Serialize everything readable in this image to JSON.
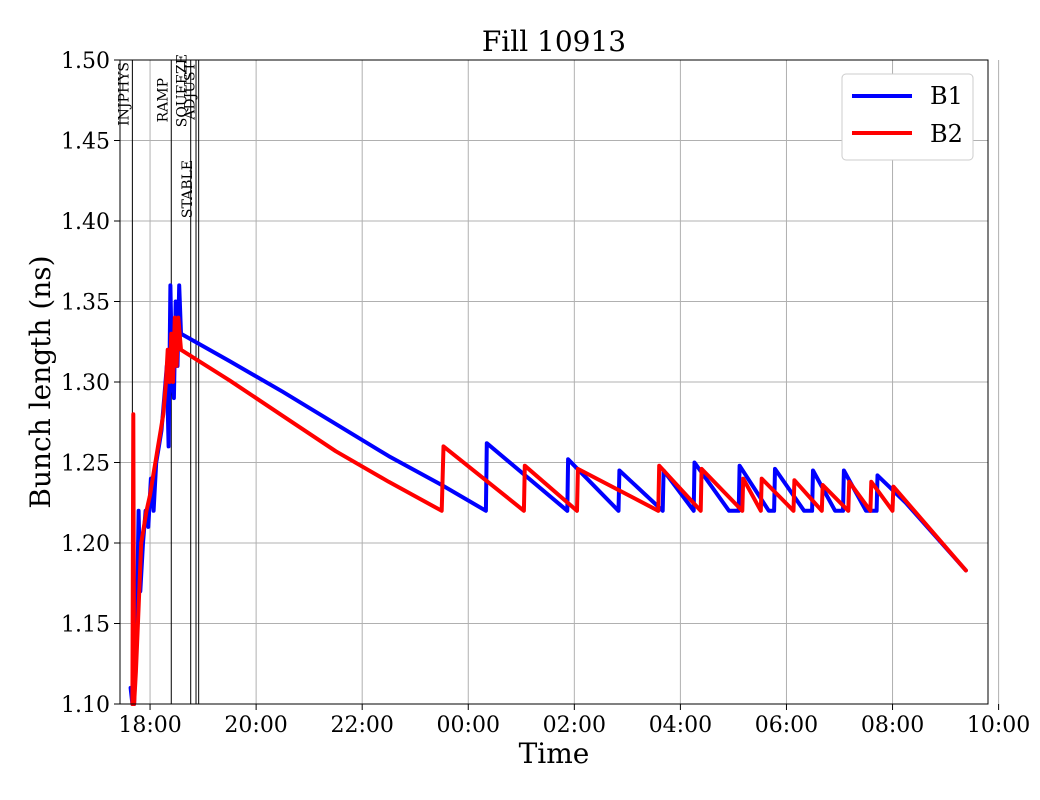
{
  "chart_data": {
    "type": "line",
    "title": "Fill 10913",
    "xlabel": "Time",
    "ylabel": "Bunch length (ns)",
    "xlim": [
      "17:26",
      "09:48"
    ],
    "ylim": [
      1.1,
      1.5
    ],
    "grid": true,
    "legend_position": "top-right",
    "x_ticks": [
      "18:00",
      "20:00",
      "22:00",
      "00:00",
      "02:00",
      "04:00",
      "06:00",
      "08:00",
      "10:00"
    ],
    "y_ticks": [
      "1.10",
      "1.15",
      "1.20",
      "1.25",
      "1.30",
      "1.35",
      "1.40",
      "1.45",
      "1.50"
    ],
    "phase_markers": [
      {
        "label": "INJPHYS",
        "time": "17:40"
      },
      {
        "label": "RAMP",
        "time": "18:24"
      },
      {
        "label": "SQUEEZE",
        "time": "18:46"
      },
      {
        "label": "ADJUST",
        "time": "18:55"
      },
      {
        "label": "STABLE",
        "time": "18:52"
      }
    ],
    "series": [
      {
        "name": "B1",
        "color": "#0000ff",
        "points": [
          [
            "17:38",
            1.11
          ],
          [
            "17:40",
            1.1
          ],
          [
            "17:42",
            1.1
          ],
          [
            "17:45",
            1.15
          ],
          [
            "17:47",
            1.22
          ],
          [
            "17:49",
            1.17
          ],
          [
            "17:52",
            1.2
          ],
          [
            "17:55",
            1.22
          ],
          [
            "17:58",
            1.21
          ],
          [
            "18:01",
            1.24
          ],
          [
            "18:04",
            1.22
          ],
          [
            "18:07",
            1.25
          ],
          [
            "18:10",
            1.26
          ],
          [
            "18:13",
            1.27
          ],
          [
            "18:16",
            1.29
          ],
          [
            "18:19",
            1.31
          ],
          [
            "18:21",
            1.26
          ],
          [
            "18:23",
            1.36
          ],
          [
            "18:25",
            1.3
          ],
          [
            "18:27",
            1.29
          ],
          [
            "18:29",
            1.35
          ],
          [
            "18:31",
            1.31
          ],
          [
            "18:33",
            1.36
          ],
          [
            "18:35",
            1.33
          ],
          [
            "19:30",
            1.313
          ],
          [
            "20:30",
            1.294
          ],
          [
            "21:30",
            1.274
          ],
          [
            "22:30",
            1.254
          ],
          [
            "23:30",
            1.236
          ],
          [
            "00:20",
            1.22
          ],
          [
            "00:21",
            1.262
          ],
          [
            "01:52",
            1.22
          ],
          [
            "01:53",
            1.252
          ],
          [
            "02:50",
            1.22
          ],
          [
            "02:51",
            1.245
          ],
          [
            "03:40",
            1.22
          ],
          [
            "03:41",
            1.245
          ],
          [
            "04:15",
            1.22
          ],
          [
            "04:16",
            1.25
          ],
          [
            "04:55",
            1.22
          ],
          [
            "05:06",
            1.22
          ],
          [
            "05:07",
            1.248
          ],
          [
            "05:40",
            1.22
          ],
          [
            "05:46",
            1.22
          ],
          [
            "05:47",
            1.246
          ],
          [
            "06:20",
            1.22
          ],
          [
            "06:29",
            1.22
          ],
          [
            "06:30",
            1.245
          ],
          [
            "06:55",
            1.22
          ],
          [
            "07:04",
            1.22
          ],
          [
            "07:05",
            1.245
          ],
          [
            "07:30",
            1.22
          ],
          [
            "07:42",
            1.22
          ],
          [
            "07:43",
            1.242
          ],
          [
            "08:15",
            1.225
          ],
          [
            "09:23",
            1.183
          ]
        ]
      },
      {
        "name": "B2",
        "color": "#ff0000",
        "points": [
          [
            "17:40",
            1.1
          ],
          [
            "17:41",
            1.28
          ],
          [
            "17:42",
            1.1
          ],
          [
            "17:44",
            1.12
          ],
          [
            "17:47",
            1.16
          ],
          [
            "17:50",
            1.2
          ],
          [
            "17:53",
            1.21
          ],
          [
            "17:56",
            1.22
          ],
          [
            "18:00",
            1.23
          ],
          [
            "18:03",
            1.24
          ],
          [
            "18:06",
            1.25
          ],
          [
            "18:09",
            1.26
          ],
          [
            "18:12",
            1.27
          ],
          [
            "18:15",
            1.28
          ],
          [
            "18:18",
            1.3
          ],
          [
            "18:20",
            1.32
          ],
          [
            "18:22",
            1.3
          ],
          [
            "18:24",
            1.33
          ],
          [
            "18:26",
            1.3
          ],
          [
            "18:28",
            1.34
          ],
          [
            "18:30",
            1.31
          ],
          [
            "18:32",
            1.34
          ],
          [
            "18:35",
            1.32
          ],
          [
            "19:30",
            1.301
          ],
          [
            "20:30",
            1.279
          ],
          [
            "21:30",
            1.257
          ],
          [
            "22:30",
            1.238
          ],
          [
            "23:30",
            1.22
          ],
          [
            "23:32",
            1.26
          ],
          [
            "01:03",
            1.22
          ],
          [
            "01:04",
            1.248
          ],
          [
            "02:03",
            1.22
          ],
          [
            "02:04",
            1.246
          ],
          [
            "03:35",
            1.22
          ],
          [
            "03:36",
            1.248
          ],
          [
            "04:23",
            1.22
          ],
          [
            "04:24",
            1.246
          ],
          [
            "05:10",
            1.22
          ],
          [
            "05:11",
            1.24
          ],
          [
            "05:31",
            1.22
          ],
          [
            "05:32",
            1.24
          ],
          [
            "06:08",
            1.22
          ],
          [
            "06:09",
            1.239
          ],
          [
            "06:40",
            1.22
          ],
          [
            "06:41",
            1.236
          ],
          [
            "07:10",
            1.22
          ],
          [
            "07:11",
            1.238
          ],
          [
            "07:35",
            1.22
          ],
          [
            "07:36",
            1.238
          ],
          [
            "08:00",
            1.22
          ],
          [
            "08:01",
            1.235
          ],
          [
            "09:23",
            1.183
          ]
        ]
      }
    ]
  }
}
